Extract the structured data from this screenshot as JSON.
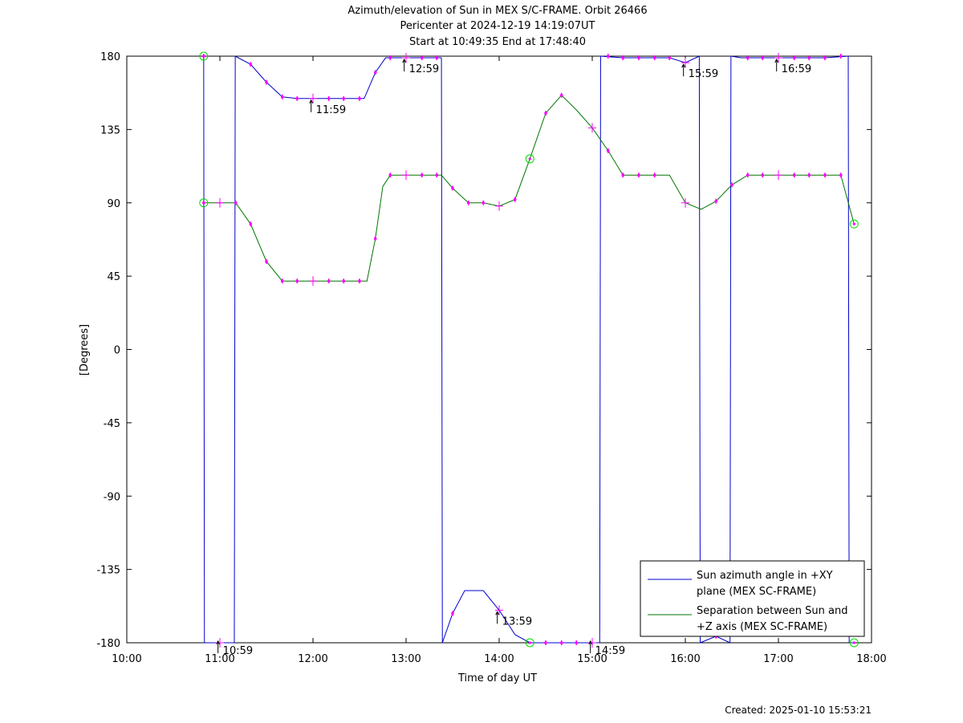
{
  "titles": {
    "line1": "Azimuth/elevation of Sun in MEX S/C-FRAME.  Orbit 26466",
    "line2": "Pericenter at 2024-12-19 14:19:07UT",
    "line3": "Start at 10:49:35 End at 17:48:40"
  },
  "footer": "Created: 2025-01-10 15:53:21",
  "colors": {
    "azimuth": "#0000cc",
    "separation": "#007700",
    "markers": "#ff00ff",
    "endpoints": "#00dd00"
  },
  "chart_data": {
    "type": "line",
    "xlabel": "Time of day UT",
    "ylabel": "[Degrees]",
    "xlim": [
      10,
      18
    ],
    "ylim": [
      -180,
      180
    ],
    "x_ticks": [
      10,
      11,
      12,
      13,
      14,
      15,
      16,
      17,
      18
    ],
    "x_tick_labels": [
      "10:00",
      "11:00",
      "12:00",
      "13:00",
      "14:00",
      "15:00",
      "16:00",
      "17:00",
      "18:00"
    ],
    "y_ticks": [
      180,
      135,
      90,
      45,
      0,
      -45,
      -90,
      -135,
      -180
    ],
    "y_tick_labels": [
      "180",
      "135",
      "90",
      "45",
      "0",
      "-45",
      "-90",
      "-135",
      "-180"
    ],
    "grid": false,
    "legend_position": "bottom-right",
    "series": [
      {
        "name": "Sun azimuth angle in +XY plane (MEX SC-FRAME)",
        "name_lines": [
          "Sun azimuth angle in +XY",
          "plane (MEX SC-FRAME)"
        ],
        "segments": [
          [
            [
              10.826,
              180
            ],
            [
              10.83,
              0
            ],
            [
              10.834,
              -180
            ]
          ],
          [
            [
              10.834,
              -180
            ],
            [
              11.155,
              -180
            ]
          ],
          [
            [
              11.155,
              -180
            ],
            [
              11.16,
              0
            ],
            [
              11.165,
              180
            ]
          ],
          [
            [
              11.165,
              180
            ],
            [
              11.33,
              175
            ],
            [
              11.5,
              164
            ],
            [
              11.67,
              155
            ],
            [
              11.83,
              154
            ],
            [
              12.0,
              154
            ],
            [
              12.17,
              154
            ],
            [
              12.33,
              154
            ],
            [
              12.55,
              154
            ],
            [
              12.67,
              170
            ],
            [
              12.78,
              179
            ],
            [
              13.0,
              179
            ],
            [
              13.38,
              179
            ]
          ],
          [
            [
              13.38,
              179
            ],
            [
              13.385,
              0
            ],
            [
              13.39,
              -180
            ]
          ],
          [
            [
              13.39,
              -180
            ],
            [
              13.5,
              -162
            ],
            [
              13.63,
              -148
            ],
            [
              13.83,
              -148
            ],
            [
              14.0,
              -160
            ],
            [
              14.17,
              -175
            ],
            [
              14.33,
              -180
            ],
            [
              14.5,
              -180
            ],
            [
              15.0,
              -180
            ],
            [
              15.08,
              -180
            ]
          ],
          [
            [
              15.08,
              -180
            ],
            [
              15.085,
              0
            ],
            [
              15.09,
              180
            ]
          ],
          [
            [
              15.09,
              180
            ],
            [
              15.33,
              179
            ],
            [
              15.67,
              179
            ],
            [
              15.83,
              179
            ],
            [
              16.0,
              176
            ],
            [
              16.15,
              180
            ]
          ],
          [
            [
              16.15,
              180
            ],
            [
              16.155,
              0
            ],
            [
              16.16,
              -180
            ]
          ],
          [
            [
              16.16,
              -180
            ],
            [
              16.33,
              -176
            ],
            [
              16.48,
              -180
            ]
          ],
          [
            [
              16.48,
              -180
            ],
            [
              16.485,
              0
            ],
            [
              16.49,
              180
            ]
          ],
          [
            [
              16.49,
              180
            ],
            [
              16.6,
              179
            ],
            [
              17.0,
              179
            ],
            [
              17.5,
              179
            ],
            [
              17.75,
              180
            ]
          ],
          [
            [
              17.75,
              180
            ],
            [
              17.755,
              0
            ],
            [
              17.76,
              -180
            ]
          ],
          [
            [
              17.76,
              -180
            ],
            [
              17.813,
              -180
            ]
          ]
        ]
      },
      {
        "name": "Separation between Sun and +Z axis (MEX SC-FRAME)",
        "name_lines": [
          "Separation between Sun and",
          "+Z axis (MEX SC-FRAME)"
        ],
        "segments": [
          [
            [
              10.826,
              90
            ],
            [
              11.0,
              90
            ],
            [
              11.17,
              90
            ],
            [
              11.33,
              77
            ],
            [
              11.5,
              54
            ],
            [
              11.67,
              42
            ],
            [
              12.0,
              42
            ],
            [
              12.33,
              42
            ],
            [
              12.58,
              42
            ],
            [
              12.67,
              68
            ],
            [
              12.75,
              100
            ],
            [
              12.83,
              107
            ],
            [
              13.0,
              107
            ],
            [
              13.17,
              107
            ],
            [
              13.38,
              107
            ],
            [
              13.5,
              99
            ],
            [
              13.67,
              90
            ],
            [
              13.83,
              90
            ],
            [
              14.0,
              88
            ],
            [
              14.17,
              92
            ],
            [
              14.33,
              117
            ],
            [
              14.5,
              145
            ],
            [
              14.67,
              156
            ],
            [
              14.83,
              147
            ],
            [
              15.0,
              136
            ],
            [
              15.17,
              122
            ],
            [
              15.33,
              107
            ],
            [
              15.5,
              107
            ],
            [
              15.83,
              107
            ],
            [
              16.0,
              90
            ],
            [
              16.17,
              86
            ],
            [
              16.33,
              91
            ],
            [
              16.5,
              101
            ],
            [
              16.67,
              107
            ],
            [
              17.0,
              107
            ],
            [
              17.33,
              107
            ],
            [
              17.67,
              107
            ],
            [
              17.813,
              77
            ]
          ]
        ]
      }
    ],
    "hour_markers": [
      [
        10.826,
        180
      ],
      [
        10.826,
        90
      ],
      [
        11.17,
        90
      ],
      [
        11.33,
        175
      ],
      [
        11.33,
        77
      ],
      [
        11.5,
        164
      ],
      [
        11.5,
        54
      ],
      [
        11.67,
        155
      ],
      [
        11.67,
        42
      ],
      [
        11.83,
        154
      ],
      [
        11.83,
        42
      ],
      [
        12.17,
        154
      ],
      [
        12.17,
        42
      ],
      [
        12.33,
        154
      ],
      [
        12.33,
        42
      ],
      [
        12.5,
        154
      ],
      [
        12.5,
        42
      ],
      [
        12.67,
        170
      ],
      [
        12.67,
        68
      ],
      [
        12.83,
        179
      ],
      [
        12.83,
        107
      ],
      [
        13.17,
        179
      ],
      [
        13.17,
        107
      ],
      [
        13.33,
        179
      ],
      [
        13.33,
        107
      ],
      [
        13.5,
        -162
      ],
      [
        13.5,
        99
      ],
      [
        13.67,
        90
      ],
      [
        13.83,
        90
      ],
      [
        14.17,
        92
      ],
      [
        14.5,
        145
      ],
      [
        14.5,
        -180
      ],
      [
        14.67,
        156
      ],
      [
        14.67,
        -180
      ],
      [
        14.83,
        -180
      ],
      [
        15.17,
        180
      ],
      [
        15.17,
        122
      ],
      [
        15.33,
        179
      ],
      [
        15.33,
        107
      ],
      [
        15.5,
        179
      ],
      [
        15.5,
        107
      ],
      [
        15.67,
        179
      ],
      [
        15.67,
        107
      ],
      [
        15.83,
        179
      ],
      [
        16.33,
        91
      ],
      [
        16.33,
        -176
      ],
      [
        16.5,
        101
      ],
      [
        16.67,
        179
      ],
      [
        16.67,
        107
      ],
      [
        16.83,
        179
      ],
      [
        16.83,
        107
      ],
      [
        17.17,
        179
      ],
      [
        17.17,
        107
      ],
      [
        17.33,
        179
      ],
      [
        17.33,
        107
      ],
      [
        17.5,
        179
      ],
      [
        17.5,
        107
      ],
      [
        17.67,
        180
      ],
      [
        17.67,
        107
      ]
    ],
    "major_markers": [
      [
        11.0,
        90
      ],
      [
        11.0,
        -180
      ],
      [
        12.0,
        154
      ],
      [
        12.0,
        42
      ],
      [
        13.0,
        179
      ],
      [
        13.0,
        107
      ],
      [
        14.0,
        88
      ],
      [
        14.0,
        -160
      ],
      [
        15.0,
        136
      ],
      [
        15.0,
        -180
      ],
      [
        16.0,
        176
      ],
      [
        16.0,
        90
      ],
      [
        17.0,
        179
      ],
      [
        17.0,
        107
      ]
    ],
    "endpoint_markers": [
      [
        10.826,
        180
      ],
      [
        10.826,
        90
      ],
      [
        14.33,
        117
      ],
      [
        14.33,
        -180
      ],
      [
        17.813,
        77
      ],
      [
        17.813,
        -180
      ]
    ],
    "annotations": [
      {
        "x": 11.98,
        "y": 154,
        "text": "11:59"
      },
      {
        "x": 12.98,
        "y": 179,
        "text": "12:59"
      },
      {
        "x": 13.98,
        "y": -160,
        "text": "13:59"
      },
      {
        "x": 14.98,
        "y": -180,
        "text": "14:59"
      },
      {
        "x": 15.98,
        "y": 176,
        "text": "15:59"
      },
      {
        "x": 16.98,
        "y": 179,
        "text": "16:59"
      },
      {
        "x": 10.98,
        "y": -180,
        "text": "10:59"
      }
    ]
  }
}
